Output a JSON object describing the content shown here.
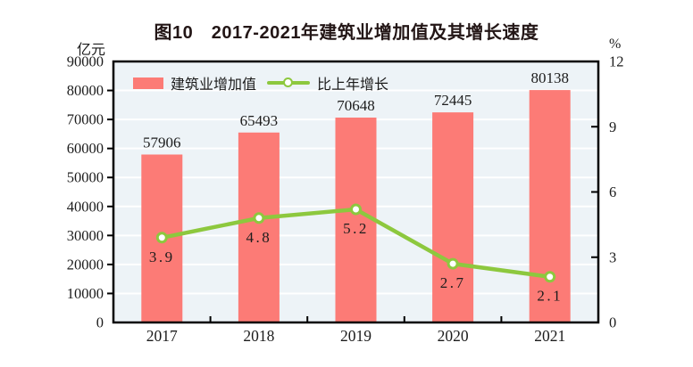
{
  "title": "图10　2017-2021年建筑业增加值及其增长速度",
  "chart_data": {
    "type": "bar+line",
    "title": "图10　2017-2021年建筑业增加值及其增长速度",
    "categories": [
      "2017",
      "2018",
      "2019",
      "2020",
      "2021"
    ],
    "series": [
      {
        "name": "建筑业增加值",
        "type": "bar",
        "axis": "left",
        "color": "#fc7b76",
        "values": [
          57906,
          65493,
          70648,
          72445,
          80138
        ],
        "labels": [
          "57906",
          "65493",
          "70648",
          "72445",
          "80138"
        ]
      },
      {
        "name": "比上年增长",
        "type": "line",
        "axis": "right",
        "color": "#8dc83e",
        "marker": "circle-white-fill",
        "values": [
          3.9,
          4.8,
          5.2,
          2.7,
          2.1
        ],
        "labels": [
          "3.9",
          "4.8",
          "5.2",
          "2.7",
          "2.1"
        ]
      }
    ],
    "left_axis_unit": "亿元",
    "right_axis_unit": "%",
    "left_ylim": [
      0,
      90000
    ],
    "right_ylim": [
      0,
      12
    ],
    "left_tick_labels": [
      "0",
      "10000",
      "20000",
      "30000",
      "40000",
      "50000",
      "60000",
      "70000",
      "80000",
      "90000"
    ],
    "right_tick_labels": [
      "0",
      "3",
      "6",
      "9",
      "12"
    ],
    "grid": true,
    "legend_position": "top-left",
    "colors": {
      "plot_background": "#edf3f7",
      "grid_line": "#ffffff",
      "plot_border": "#000000",
      "text": "#1c1c1c"
    }
  }
}
